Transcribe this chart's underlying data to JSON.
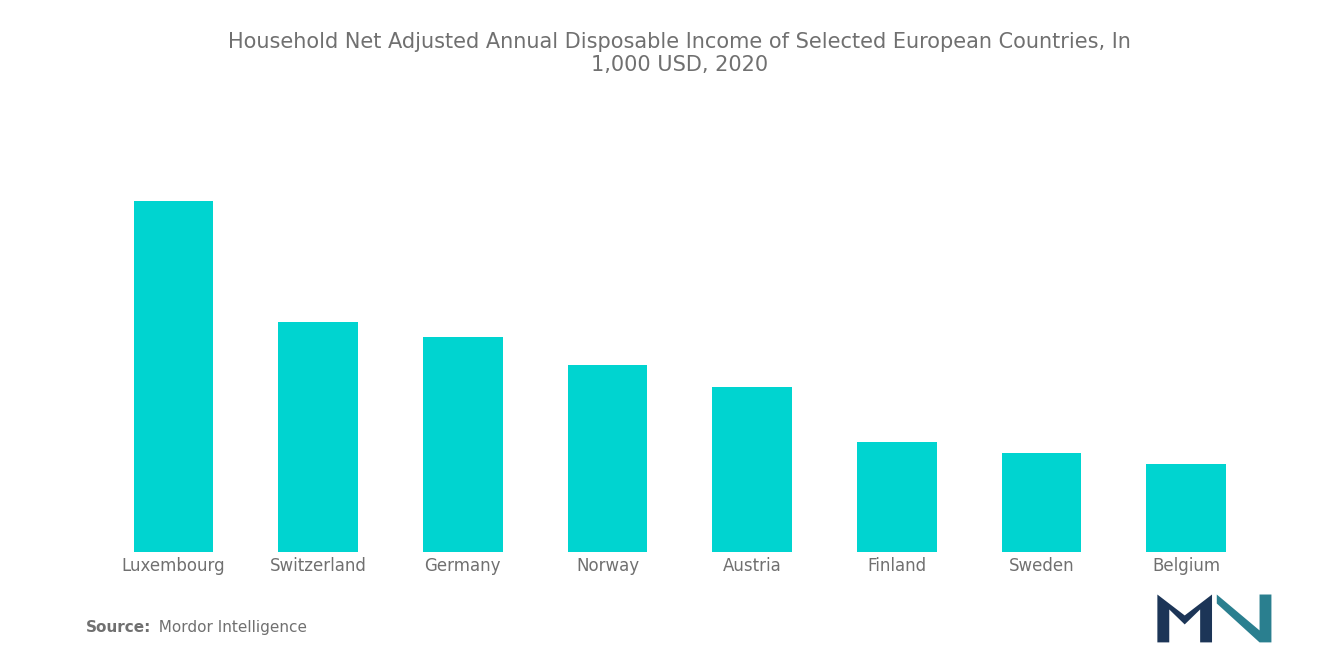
{
  "title": "Household Net Adjusted Annual Disposable Income of Selected European Countries, In\n1,000 USD, 2020",
  "categories": [
    "Luxembourg",
    "Switzerland",
    "Germany",
    "Norway",
    "Austria",
    "Finland",
    "Sweden",
    "Belgium"
  ],
  "values": [
    46.0,
    40.5,
    39.8,
    38.5,
    37.5,
    35.0,
    34.5,
    34.0
  ],
  "bar_color": "#00D4D0",
  "background_color": "#FFFFFF",
  "text_color": "#707070",
  "source_bold": "Source:",
  "source_rest": "  Mordor Intelligence",
  "title_fontsize": 15,
  "label_fontsize": 12,
  "source_fontsize": 11,
  "ylim": [
    30,
    50
  ],
  "bar_width": 0.55
}
